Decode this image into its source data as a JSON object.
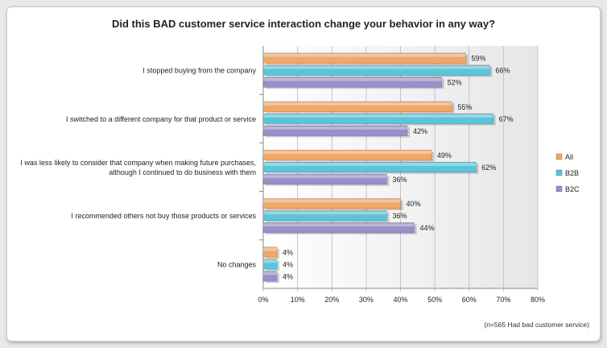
{
  "chart_data": {
    "type": "bar",
    "orientation": "horizontal",
    "title": "Did this BAD customer service interaction change your behavior in any way?",
    "categories": [
      "I stopped buying from the company",
      "I switched to a different company for that product or service",
      "I was less likely to consider that company when making future purchases, although I continued to do business with them",
      "I recommended others not buy those products or services",
      "No changes"
    ],
    "category_lines": [
      [
        "I stopped buying from the company"
      ],
      [
        "I switched to a different company for that product or service"
      ],
      [
        "I was less likely to consider that company when making future purchases,",
        "although I continued to do business with them"
      ],
      [
        "I recommended others not buy those products or services"
      ],
      [
        "No changes"
      ]
    ],
    "series": [
      {
        "name": "All",
        "values": [
          59,
          55,
          49,
          40,
          4
        ],
        "labels": [
          "59%",
          "55%",
          "49%",
          "40%",
          "4%"
        ],
        "color": "#f0a868"
      },
      {
        "name": "B2B",
        "values": [
          66,
          67,
          62,
          36,
          4
        ],
        "labels": [
          "66%",
          "67%",
          "62%",
          "36%",
          "4%"
        ],
        "color": "#5cc4d8"
      },
      {
        "name": "B2C",
        "values": [
          52,
          42,
          36,
          44,
          4
        ],
        "labels": [
          "52%",
          "42%",
          "36%",
          "44%",
          "4%"
        ],
        "color": "#9a8fc8"
      }
    ],
    "x_ticks": [
      "0%",
      "10%",
      "20%",
      "30%",
      "40%",
      "50%",
      "60%",
      "70%",
      "80%"
    ],
    "xlim": [
      0,
      80
    ],
    "grid": true,
    "legend_position": "right"
  },
  "footnote": "(n=565 Had bad customer service)"
}
